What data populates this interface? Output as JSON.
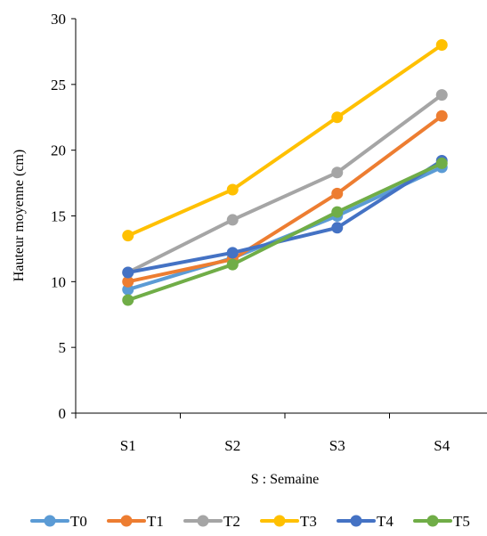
{
  "chart_data": {
    "type": "line",
    "categories": [
      "S1",
      "S2",
      "S3",
      "S4"
    ],
    "series": [
      {
        "name": "T0",
        "color": "#5B9BD5",
        "values": [
          9.4,
          11.8,
          15.0,
          18.7
        ]
      },
      {
        "name": "T1",
        "color": "#ED7D31",
        "values": [
          10.0,
          11.7,
          16.7,
          22.6
        ]
      },
      {
        "name": "T2",
        "color": "#A5A5A5",
        "values": [
          10.7,
          14.7,
          18.3,
          24.2
        ]
      },
      {
        "name": "T3",
        "color": "#FFC000",
        "values": [
          13.5,
          17.0,
          22.5,
          28.0
        ]
      },
      {
        "name": "T4",
        "color": "#4472C4",
        "values": [
          10.7,
          12.2,
          14.1,
          19.2
        ]
      },
      {
        "name": "T5",
        "color": "#70AD47",
        "values": [
          8.6,
          11.3,
          15.3,
          19.0
        ]
      }
    ],
    "xlabel": "S : Semaine",
    "ylabel": "Hauteur moyenne (cm)",
    "ylim": [
      0,
      30
    ],
    "yticks": [
      0,
      5,
      10,
      15,
      20,
      25,
      30
    ],
    "grid": false,
    "legend_position": "bottom"
  }
}
